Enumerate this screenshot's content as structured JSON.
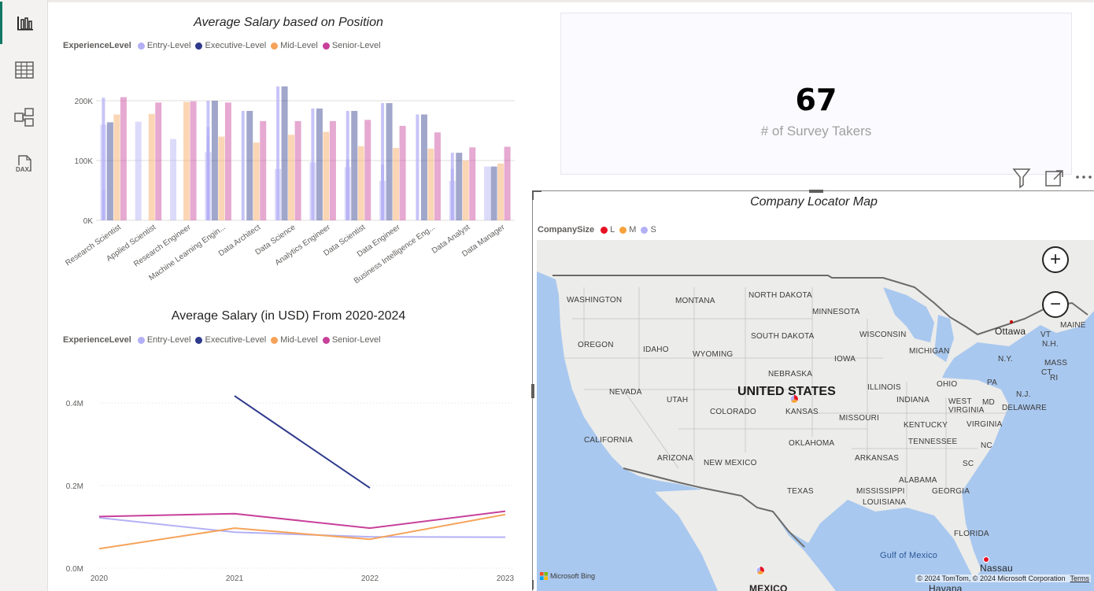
{
  "rail": {
    "items": [
      {
        "name": "report-view-icon"
      },
      {
        "name": "table-view-icon"
      },
      {
        "name": "model-view-icon"
      },
      {
        "name": "dax-query-icon",
        "label": "DAX"
      }
    ]
  },
  "bar_chart": {
    "title": "Average Salary based on Position",
    "legend_title": "ExperienceLevel",
    "legend": [
      {
        "label": "Entry-Level",
        "color": "#b4b0f5"
      },
      {
        "label": "Executive-Level",
        "color": "#2e3a8c"
      },
      {
        "label": "Mid-Level",
        "color": "#f5a35a"
      },
      {
        "label": "Senior-Level",
        "color": "#c8409a"
      }
    ],
    "yticks": [
      "0K",
      "100K",
      "200K"
    ]
  },
  "line_chart": {
    "title": "Average Salary (in USD) From 2020-2024",
    "legend_title": "ExperienceLevel",
    "legend": [
      {
        "label": "Entry-Level",
        "color": "#b4b0f5"
      },
      {
        "label": "Executive-Level",
        "color": "#2e3a8c"
      },
      {
        "label": "Mid-Level",
        "color": "#f5a35a"
      },
      {
        "label": "Senior-Level",
        "color": "#c8409a"
      }
    ],
    "yticks": [
      "0.0M",
      "0.2M",
      "0.4M"
    ],
    "xticks": [
      "2020",
      "2021",
      "2022",
      "2023"
    ]
  },
  "card": {
    "value": "67",
    "label": "# of Survey Takers"
  },
  "map": {
    "title": "Company Locator Map",
    "legend_title": "CompanySize",
    "legend": [
      {
        "label": "L",
        "color": "#e81123"
      },
      {
        "label": "M",
        "color": "#f7a23b"
      },
      {
        "label": "S",
        "color": "#b4b0f5"
      }
    ],
    "labels": {
      "washington": "WASHINGTON",
      "montana": "MONTANA",
      "north_dakota": "NORTH DAKOTA",
      "minnesota": "MINNESOTA",
      "oregon": "OREGON",
      "idaho": "IDAHO",
      "wyoming": "WYOMING",
      "south_dakota": "SOUTH DAKOTA",
      "wisconsin": "WISCONSIN",
      "michigan": "MICHIGAN",
      "iowa": "IOWA",
      "nebraska": "NEBRASKA",
      "nevada": "NEVADA",
      "utah": "UTAH",
      "colorado": "COLORADO",
      "kansas": "KANSAS",
      "illinois": "ILLINOIS",
      "indiana": "INDIANA",
      "ohio": "OHIO",
      "pa": "PA",
      "ny": "N.Y.",
      "nh": "N.H.",
      "vt": "VT",
      "mass": "MASS",
      "maine": "MAINE",
      "nj": "N.J.",
      "delaware": "DELAWARE",
      "md": "MD",
      "west_virginia": "WEST VIRGINIA",
      "virginia": "VIRGINIA",
      "kentucky": "KENTUCKY",
      "missouri": "MISSOURI",
      "california": "CALIFORNIA",
      "arizona": "ARIZONA",
      "new_mexico": "NEW MEXICO",
      "oklahoma": "OKLAHOMA",
      "arkansas": "ARKANSAS",
      "tennessee": "TENNESSEE",
      "nc": "NC",
      "sc": "SC",
      "alabama": "ALABAMA",
      "georgia": "GEORGIA",
      "mississippi": "MISSISSIPPI",
      "texas": "TEXAS",
      "louisiana": "LOUISIANA",
      "florida": "FLORIDA",
      "united_states": "UNITED STATES",
      "ottawa": "Ottawa",
      "gulf": "Gulf of Mexico",
      "nassau": "Nassau",
      "mexico": "MEXICO",
      "havana": "Havana",
      "ct": "CT",
      "ri": "RI"
    },
    "bing_logo": "Microsoft Bing",
    "copyright": "© 2024 TomTom, © 2024 Microsoft Corporation",
    "terms": "Terms",
    "zoom_in": "+",
    "zoom_out": "−"
  },
  "chart_data": [
    {
      "type": "bar",
      "title": "Average Salary based on Position",
      "ylabel": "",
      "xlabel": "",
      "ylim": [
        0,
        250000
      ],
      "categories": [
        "Research Scientist",
        "Applied Scientist",
        "Research Engineer",
        "Machine Learning Engin...",
        "Data Architect",
        "Data Science",
        "Analytics Engineer",
        "Data Scientist",
        "Data Engineer",
        "Business Intelligence Eng...",
        "Data Analyst",
        "Data Manager"
      ],
      "series": [
        {
          "name": "Entry-Level",
          "color": "#b4b0f5",
          "values": [
            [
              160000,
              null,
              205000,
              50000
            ],
            [
              165000,
              null,
              null,
              null
            ],
            [
              136000,
              null,
              null,
              null
            ],
            [
              114000,
              200000,
              156000,
              140000
            ],
            [
              null,
              183000,
              null,
              null
            ],
            [
              86000,
              224000,
              null,
              null
            ],
            [
              97000,
              187000,
              null,
              null
            ],
            [
              89000,
              102000,
              183000,
              null
            ],
            [
              66000,
              93000,
              196000,
              null
            ],
            [
              null,
              177000,
              null,
              null
            ],
            [
              66000,
              86000,
              113000,
              null
            ],
            [
              90000,
              null,
              null,
              null
            ]
          ]
        },
        {
          "name": "Executive-Level",
          "color": "#2e3a8c",
          "values": [
            164000,
            null,
            null,
            200000,
            183000,
            224000,
            187000,
            183000,
            196000,
            177000,
            113000,
            90000
          ]
        },
        {
          "name": "Mid-Level",
          "color": "#f5a35a",
          "values": [
            177000,
            178000,
            198000,
            140000,
            130000,
            143000,
            148000,
            124000,
            121000,
            120000,
            100000,
            95000
          ]
        },
        {
          "name": "Senior-Level",
          "color": "#c8409a",
          "values": [
            206000,
            197000,
            199000,
            197000,
            166000,
            166000,
            166000,
            168000,
            158000,
            147000,
            122000,
            123000
          ]
        }
      ]
    },
    {
      "type": "line",
      "title": "Average Salary (in USD) From 2020-2024",
      "xlabel": "",
      "ylabel": "",
      "ylim": [
        0,
        480000
      ],
      "x": [
        2020,
        2021,
        2022,
        2023
      ],
      "series": [
        {
          "name": "Entry-Level",
          "color": "#b4b0f5",
          "values": [
            122000,
            87000,
            76000,
            75000
          ]
        },
        {
          "name": "Executive-Level",
          "color": "#2e3a8c",
          "values": [
            null,
            417000,
            194000,
            null
          ]
        },
        {
          "name": "Mid-Level",
          "color": "#f5a35a",
          "values": [
            47000,
            97000,
            70000,
            130000
          ]
        },
        {
          "name": "Senior-Level",
          "color": "#c8409a",
          "values": [
            125000,
            132000,
            97000,
            138000
          ]
        }
      ]
    }
  ]
}
